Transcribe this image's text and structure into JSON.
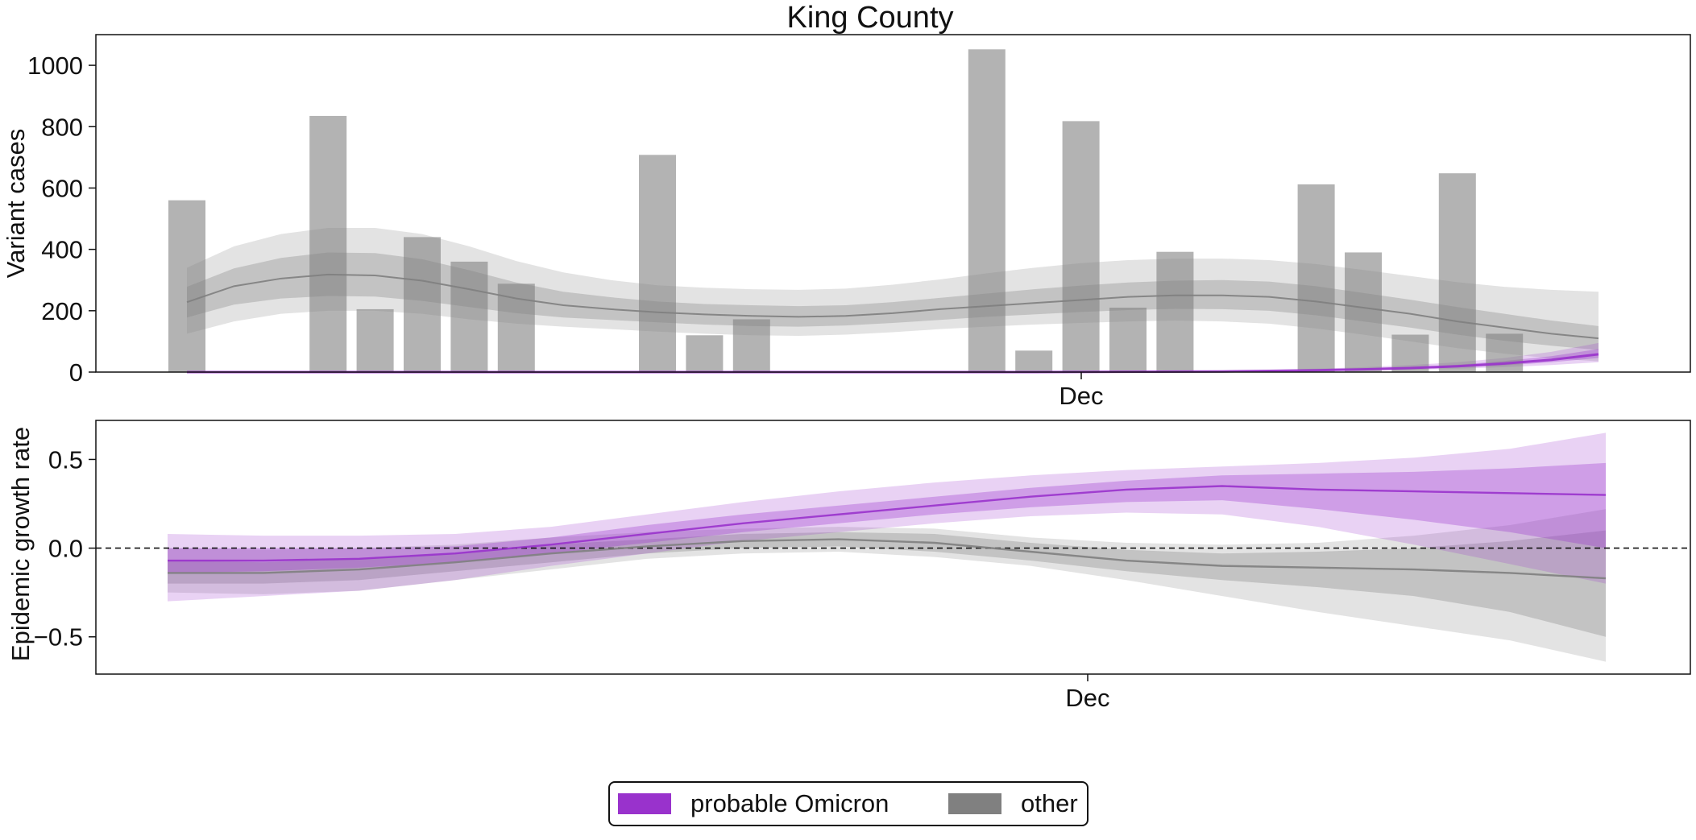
{
  "chart_data": [
    {
      "type": "bar",
      "title": "King County",
      "ylabel": "Variant cases",
      "xlabel": "",
      "x_tick_labels": [
        "Dec"
      ],
      "y_ticks": [
        0,
        200,
        400,
        600,
        800,
        1000
      ],
      "ylim": [
        0,
        1100
      ],
      "grid": false,
      "bars": [
        {
          "day": 0,
          "value": 560
        },
        {
          "day": 3,
          "value": 835
        },
        {
          "day": 4,
          "value": 205
        },
        {
          "day": 5,
          "value": 440
        },
        {
          "day": 6,
          "value": 360
        },
        {
          "day": 7,
          "value": 288
        },
        {
          "day": 10,
          "value": 708
        },
        {
          "day": 11,
          "value": 120
        },
        {
          "day": 12,
          "value": 172
        },
        {
          "day": 17,
          "value": 1052
        },
        {
          "day": 18,
          "value": 70
        },
        {
          "day": 19,
          "value": 818
        },
        {
          "day": 20,
          "value": 210
        },
        {
          "day": 21,
          "value": 392
        },
        {
          "day": 24,
          "value": 612
        },
        {
          "day": 25,
          "value": 390
        },
        {
          "day": 26,
          "value": 122
        },
        {
          "day": 27,
          "value": 648
        },
        {
          "day": 28,
          "value": 125
        }
      ],
      "series": [
        {
          "name": "other",
          "color": "#808080",
          "day": [
            0,
            1,
            2,
            3,
            4,
            5,
            6,
            7,
            8,
            9,
            10,
            11,
            12,
            13,
            14,
            15,
            16,
            17,
            18,
            19,
            20,
            21,
            22,
            23,
            24,
            25,
            26,
            27,
            28,
            29,
            30
          ],
          "median": [
            228,
            280,
            305,
            318,
            315,
            298,
            270,
            240,
            218,
            205,
            195,
            188,
            183,
            180,
            183,
            192,
            205,
            215,
            225,
            235,
            245,
            250,
            250,
            245,
            230,
            210,
            190,
            165,
            145,
            125,
            110
          ],
          "inner_low": [
            178,
            220,
            240,
            248,
            246,
            232,
            212,
            192,
            178,
            170,
            162,
            155,
            150,
            148,
            152,
            160,
            170,
            180,
            188,
            196,
            202,
            206,
            205,
            200,
            185,
            165,
            145,
            122,
            102,
            86,
            72
          ],
          "inner_high": [
            278,
            338,
            372,
            390,
            388,
            368,
            332,
            292,
            262,
            244,
            230,
            222,
            218,
            215,
            218,
            228,
            242,
            256,
            270,
            282,
            292,
            298,
            300,
            295,
            280,
            258,
            236,
            212,
            190,
            168,
            150
          ],
          "outer_low": [
            125,
            165,
            190,
            200,
            200,
            190,
            172,
            158,
            148,
            140,
            132,
            125,
            120,
            118,
            122,
            130,
            140,
            148,
            155,
            160,
            165,
            168,
            165,
            158,
            142,
            122,
            100,
            78,
            60,
            45,
            35
          ],
          "outer_high": [
            340,
            410,
            450,
            470,
            470,
            450,
            410,
            362,
            325,
            300,
            283,
            275,
            270,
            268,
            272,
            285,
            302,
            322,
            340,
            355,
            365,
            370,
            370,
            365,
            352,
            333,
            313,
            293,
            278,
            268,
            262
          ]
        },
        {
          "name": "probable Omicron",
          "color": "#9932cc",
          "day": [
            0,
            2,
            4,
            6,
            8,
            10,
            12,
            14,
            16,
            18,
            20,
            22,
            23,
            24,
            25,
            26,
            27,
            28,
            29,
            30
          ],
          "median": [
            0,
            0,
            0,
            0,
            0,
            0,
            0,
            0,
            0,
            0,
            1,
            2,
            4,
            6,
            9,
            13,
            19,
            28,
            40,
            58
          ],
          "inner_low": [
            0,
            0,
            0,
            0,
            0,
            0,
            0,
            0,
            0,
            0,
            0,
            1,
            3,
            4,
            7,
            10,
            15,
            22,
            32,
            46
          ],
          "inner_high": [
            0,
            0,
            0,
            0,
            0,
            0,
            0,
            0,
            0,
            0,
            1,
            3,
            5,
            8,
            12,
            17,
            24,
            36,
            52,
            75
          ],
          "outer_low": [
            0,
            0,
            0,
            0,
            0,
            0,
            0,
            0,
            0,
            0,
            0,
            1,
            2,
            3,
            5,
            7,
            11,
            16,
            23,
            32
          ],
          "outer_high": [
            0,
            0,
            0,
            0,
            0,
            0,
            0,
            0,
            0,
            0,
            1,
            4,
            7,
            11,
            16,
            23,
            32,
            46,
            66,
            95
          ]
        }
      ]
    },
    {
      "type": "line",
      "ylabel": "Epidemic growth rate",
      "xlabel": "",
      "x_tick_labels": [
        "Dec"
      ],
      "y_ticks": [
        -0.5,
        0.0,
        0.5
      ],
      "y_tick_labels": [
        "−0.5",
        "0.0",
        "0.5"
      ],
      "ylim": [
        -0.71,
        0.72
      ],
      "reference_line": 0.0,
      "grid": false,
      "series": [
        {
          "name": "probable Omicron",
          "color": "#9932cc",
          "day": [
            0,
            2,
            4,
            6,
            8,
            10,
            12,
            14,
            16,
            18,
            20,
            22,
            24,
            26,
            28,
            30
          ],
          "median": [
            -0.07,
            -0.07,
            -0.06,
            -0.03,
            0.02,
            0.08,
            0.14,
            0.19,
            0.24,
            0.29,
            0.33,
            0.35,
            0.33,
            0.32,
            0.31,
            0.3
          ],
          "inner_low": [
            -0.14,
            -0.13,
            -0.11,
            -0.08,
            -0.03,
            0.03,
            0.09,
            0.14,
            0.19,
            0.23,
            0.26,
            0.27,
            0.22,
            0.16,
            0.09,
            0.0
          ],
          "inner_high": [
            0.0,
            0.0,
            0.0,
            0.01,
            0.06,
            0.13,
            0.19,
            0.24,
            0.29,
            0.34,
            0.38,
            0.41,
            0.42,
            0.43,
            0.45,
            0.48
          ],
          "outer_low": [
            -0.3,
            -0.27,
            -0.24,
            -0.18,
            -0.1,
            -0.03,
            0.04,
            0.09,
            0.14,
            0.18,
            0.2,
            0.19,
            0.12,
            0.02,
            -0.09,
            -0.2
          ],
          "outer_high": [
            0.08,
            0.07,
            0.07,
            0.08,
            0.12,
            0.19,
            0.26,
            0.32,
            0.37,
            0.41,
            0.44,
            0.46,
            0.48,
            0.51,
            0.56,
            0.65
          ]
        },
        {
          "name": "other",
          "color": "#808080",
          "day": [
            0,
            2,
            4,
            6,
            8,
            10,
            12,
            14,
            16,
            18,
            20,
            22,
            24,
            26,
            28,
            30
          ],
          "median": [
            -0.14,
            -0.14,
            -0.12,
            -0.08,
            -0.03,
            0.01,
            0.04,
            0.05,
            0.03,
            -0.02,
            -0.07,
            -0.1,
            -0.11,
            -0.12,
            -0.14,
            -0.17
          ],
          "inner_low": [
            -0.2,
            -0.2,
            -0.18,
            -0.13,
            -0.08,
            -0.03,
            0.0,
            0.01,
            -0.02,
            -0.07,
            -0.13,
            -0.18,
            -0.22,
            -0.27,
            -0.36,
            -0.5
          ],
          "inner_high": [
            -0.07,
            -0.08,
            -0.06,
            -0.03,
            0.02,
            0.05,
            0.08,
            0.09,
            0.08,
            0.03,
            -0.01,
            -0.03,
            -0.02,
            0.0,
            0.04,
            0.1
          ],
          "outer_low": [
            -0.25,
            -0.26,
            -0.24,
            -0.18,
            -0.12,
            -0.06,
            -0.03,
            -0.02,
            -0.05,
            -0.1,
            -0.18,
            -0.27,
            -0.36,
            -0.44,
            -0.52,
            -0.64
          ],
          "outer_high": [
            0.0,
            -0.01,
            0.0,
            0.02,
            0.06,
            0.09,
            0.11,
            0.12,
            0.11,
            0.06,
            0.03,
            0.02,
            0.03,
            0.07,
            0.13,
            0.22
          ]
        }
      ]
    }
  ],
  "legend": {
    "placement": "bottom-center",
    "items": [
      {
        "label": "probable Omicron",
        "color": "#9932cc"
      },
      {
        "label": "other",
        "color": "#808080"
      }
    ]
  }
}
